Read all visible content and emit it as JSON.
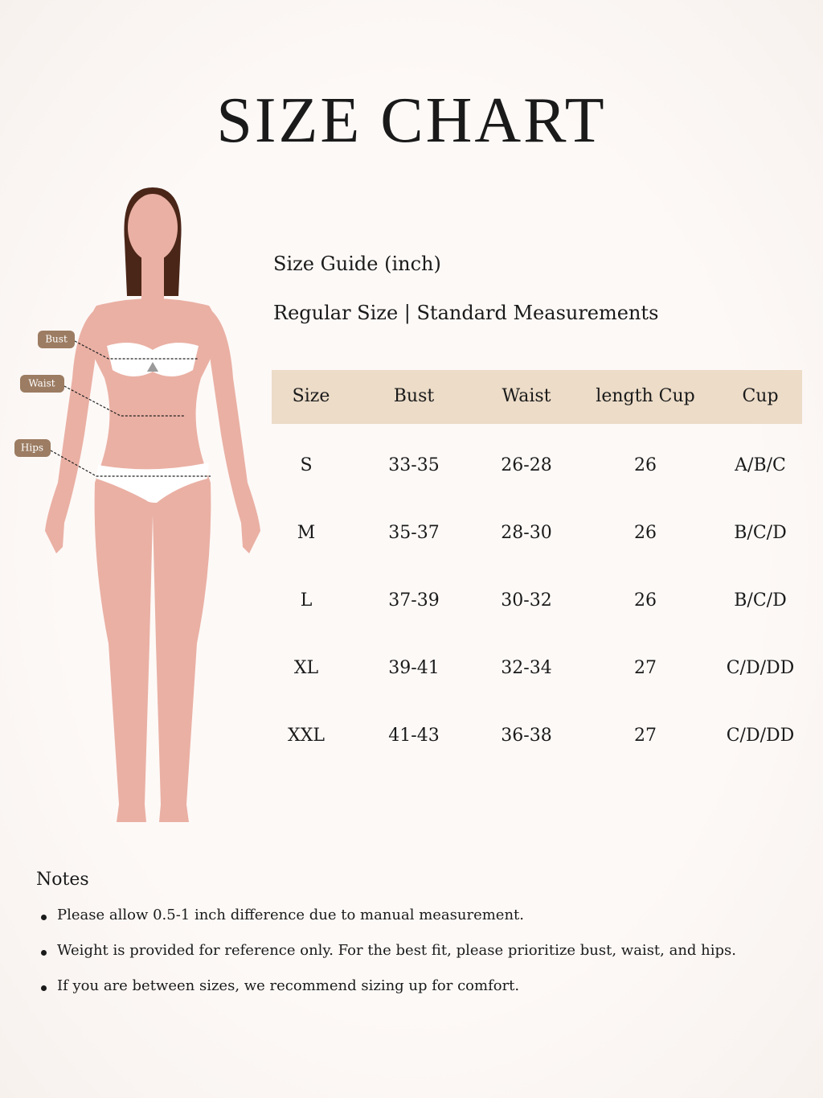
{
  "header": {
    "title": "SIZE CHART",
    "subtitle": "Size Guide (inch)",
    "description": "Regular Size | Standard Measurements"
  },
  "figure": {
    "labels": [
      "Bust",
      "Waist",
      "Hips"
    ]
  },
  "table": {
    "columns": [
      "Size",
      "Bust",
      "Waist",
      "length Cup",
      "Cup"
    ],
    "rows": [
      [
        "S",
        "33-35",
        "26-28",
        "26",
        "A/B/C"
      ],
      [
        "M",
        "35-37",
        "28-30",
        "26",
        "B/C/D"
      ],
      [
        "L",
        "37-39",
        "30-32",
        "26",
        "B/C/D"
      ],
      [
        "XL",
        "39-41",
        "32-34",
        "27",
        "C/D/DD"
      ],
      [
        "XXL",
        "41-43",
        "36-38",
        "27",
        "C/D/DD"
      ]
    ]
  },
  "notes": {
    "title": "Notes",
    "items": [
      "Please allow 0.5-1 inch difference due to manual measurement.",
      "Weight is provided for reference only. For the best fit, please prioritize bust, waist, and hips.",
      "If you are between sizes, we recommend sizing up for comfort."
    ]
  }
}
